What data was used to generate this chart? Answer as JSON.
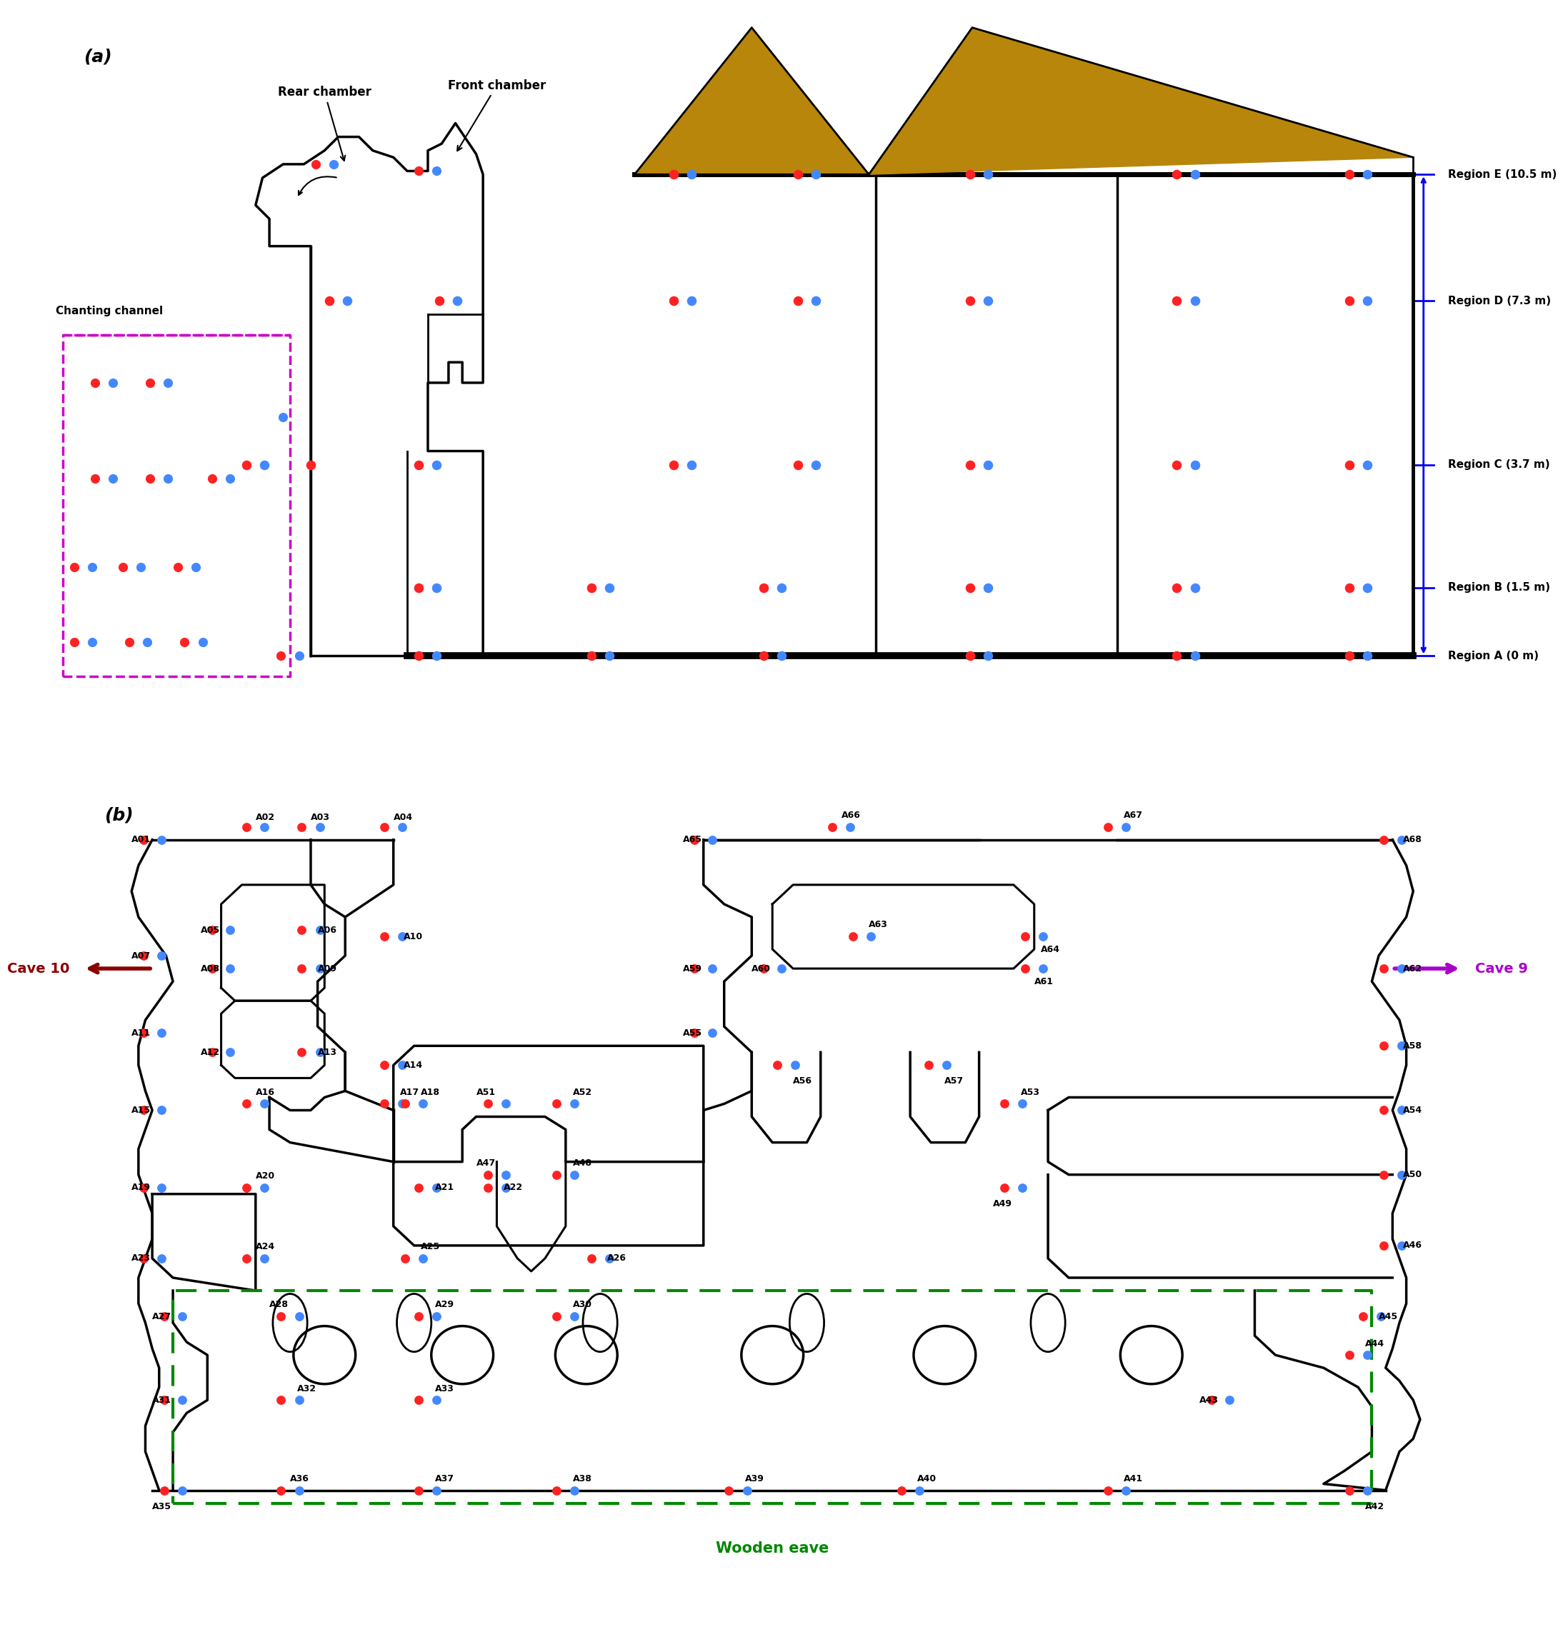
{
  "fig_width": 21.1,
  "fig_height": 23.64,
  "panel_a_label": "(a)",
  "panel_b_label": "(b)",
  "wooden_eave_label": "Wooden eave",
  "rear_chamber_label": "Rear chamber",
  "front_chamber_label": "Front chamber",
  "chanting_channel_label": "Chanting channel",
  "cave9_label": "Cave 9",
  "cave10_label": "Cave 10",
  "wooden_eave_bottom_label": "Wooden eave",
  "sensor_red": "#FF2222",
  "sensor_blue": "#4488FF",
  "roof_color": "#B8860B",
  "region_line_color": "#0000EE",
  "cave10_arrow_color": "#8B0000",
  "cave9_arrow_color": "#AA00CC",
  "green_box_color": "#008800",
  "magenta_box_color": "#CC00CC",
  "region_labels": [
    "Region E (10.5 m)",
    "Region D (7.3 m)",
    "Region C (3.7 m)",
    "Region B (1.5 m)",
    "Region A (0 m)"
  ]
}
